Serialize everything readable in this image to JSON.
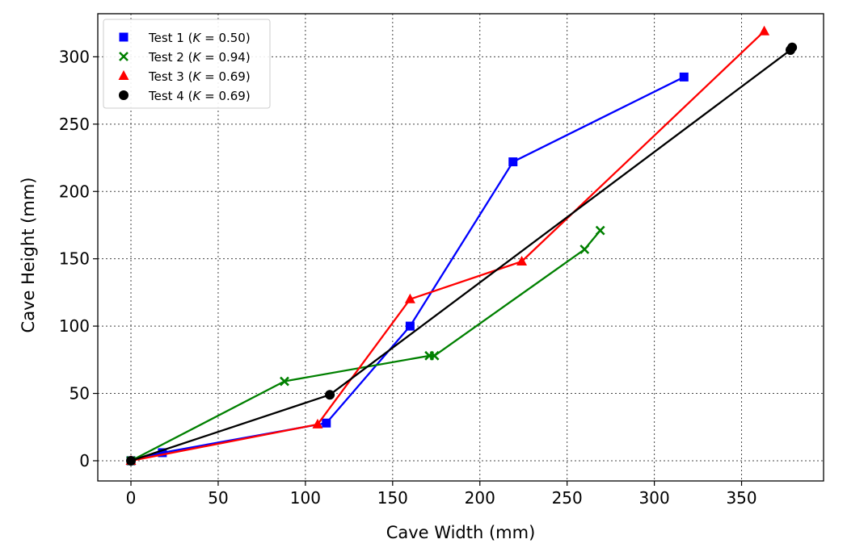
{
  "chart_data": {
    "type": "line",
    "title": "",
    "xlabel": "Cave Width (mm)",
    "ylabel": "Cave Height (mm)",
    "xlim": [
      -19,
      397
    ],
    "ylim": [
      -15,
      332
    ],
    "xticks": [
      0,
      50,
      100,
      150,
      200,
      250,
      300,
      350
    ],
    "yticks": [
      0,
      50,
      100,
      150,
      200,
      250,
      300
    ],
    "grid": true,
    "legend_position": "top-left",
    "series": [
      {
        "name": "Test 1",
        "k_label": "K",
        "k_value": "0.50",
        "color": "#0000ff",
        "marker": "square",
        "x": [
          0,
          18,
          112,
          160,
          219,
          317
        ],
        "y": [
          0,
          6,
          28,
          100,
          222,
          285
        ]
      },
      {
        "name": "Test 2",
        "k_label": "K",
        "k_value": "0.94",
        "color": "#008000",
        "marker": "x",
        "x": [
          0,
          88,
          171,
          174,
          260,
          269
        ],
        "y": [
          0,
          59,
          78,
          78,
          157,
          171
        ]
      },
      {
        "name": "Test 3",
        "k_label": "K",
        "k_value": "0.69",
        "color": "#ff0000",
        "marker": "triangle",
        "x": [
          0,
          107,
          160,
          224,
          363
        ],
        "y": [
          0,
          27,
          120,
          148,
          319
        ]
      },
      {
        "name": "Test 4",
        "k_label": "K",
        "k_value": "0.69",
        "color": "#000000",
        "marker": "circle",
        "x": [
          0,
          114,
          378,
          379
        ],
        "y": [
          0,
          49,
          305,
          307
        ]
      }
    ]
  }
}
